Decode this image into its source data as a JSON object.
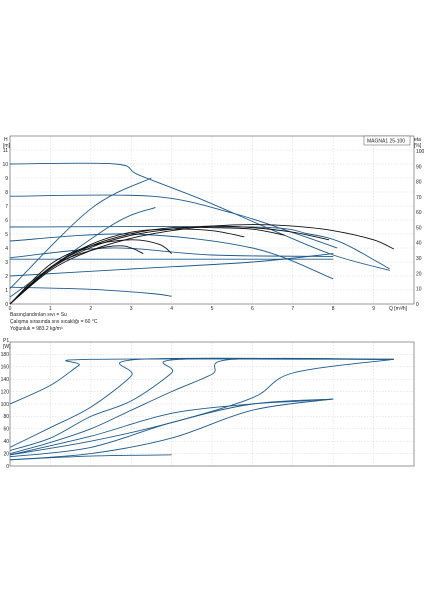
{
  "chart_data": [
    {
      "type": "line",
      "title": "MAGNA1 25-100",
      "ylabel_left": [
        "H",
        "[m]"
      ],
      "ylabel_right": [
        "eta",
        "[%]"
      ],
      "xlabel": "Q [m³/h]",
      "xlim": [
        0,
        10
      ],
      "xticks": [
        "0",
        "1",
        "2",
        "3",
        "4",
        "5",
        "6",
        "7",
        "8",
        "9"
      ],
      "ylim": [
        0,
        12
      ],
      "yticks": [
        "0",
        "1",
        "2",
        "3",
        "4",
        "5",
        "6",
        "7",
        "8",
        "9",
        "10",
        "11"
      ],
      "ylim_right": [
        0,
        110
      ],
      "yticks_right": [
        "0",
        "10",
        "20",
        "30",
        "40",
        "50",
        "60",
        "70",
        "80",
        "90",
        "100"
      ],
      "grid": true,
      "colors": {
        "head": "#1f5a8a",
        "efficiency": "#111111",
        "grid": "#c8c8c8"
      },
      "head_series": [
        {
          "x": [
            0,
            2.6,
            3.2,
            4.8,
            6.4,
            8.0,
            9.4
          ],
          "y": [
            10.0,
            10.0,
            9.2,
            7.4,
            5.4,
            3.5,
            2.4
          ]
        },
        {
          "x": [
            0,
            2.0,
            3.5
          ],
          "y": [
            1.1,
            6.8,
            9.0
          ]
        },
        {
          "x": [
            0,
            3.5,
            5.5,
            7.0,
            8.1
          ],
          "y": [
            7.7,
            7.7,
            6.5,
            5.1,
            4.0
          ]
        },
        {
          "x": [
            0,
            2.5,
            3.6
          ],
          "y": [
            0.5,
            5.6,
            6.9
          ]
        },
        {
          "x": [
            0,
            6.0,
            7.4,
            8.2,
            9.1,
            9.4
          ],
          "y": [
            5.5,
            5.5,
            5.0,
            4.4,
            3.0,
            2.5
          ]
        },
        {
          "x": [
            0,
            3.0,
            6.0,
            8.0
          ],
          "y": [
            4.5,
            5.0,
            4.0,
            1.8
          ]
        },
        {
          "x": [
            0,
            2.5,
            5.0,
            8.0
          ],
          "y": [
            3.3,
            4.0,
            3.5,
            3.4
          ]
        },
        {
          "x": [
            0,
            3.0,
            6.0,
            8.0
          ],
          "y": [
            2.0,
            2.5,
            3.0,
            3.6
          ]
        },
        {
          "x": [
            0,
            8.0
          ],
          "y": [
            3.2,
            3.2
          ]
        },
        {
          "x": [
            0,
            2.0,
            3.5,
            4.0
          ],
          "y": [
            1.2,
            1.05,
            0.75,
            0.55
          ]
        }
      ],
      "efficiency_series": [
        {
          "x": [
            0,
            1.0,
            2.0,
            3.0,
            4.0,
            5.0,
            6.0,
            7.0,
            8.0,
            9.0,
            9.5
          ],
          "y": [
            0,
            22,
            35,
            43,
            48,
            51,
            52,
            51,
            48,
            42,
            36
          ]
        },
        {
          "x": [
            0,
            1.0,
            2.0,
            3.0,
            4.0,
            5.0,
            6.0,
            7.0,
            7.9
          ],
          "y": [
            0,
            23,
            37,
            45,
            49,
            51,
            50,
            47,
            42
          ]
        },
        {
          "x": [
            0,
            1.0,
            2.0,
            3.0,
            4.0,
            5.0,
            6.0,
            6.8
          ],
          "y": [
            0,
            24,
            38,
            46,
            50,
            50,
            49,
            45
          ]
        },
        {
          "x": [
            0,
            1.0,
            2.0,
            3.0,
            4.0,
            5.0,
            5.8
          ],
          "y": [
            0,
            24,
            39,
            47,
            49,
            48,
            44
          ]
        },
        {
          "x": [
            0,
            1.0,
            2.0,
            3.0,
            3.7,
            4.0
          ],
          "y": [
            0,
            26,
            38,
            42,
            39,
            33
          ]
        },
        {
          "x": [
            0,
            1.0,
            2.0,
            2.8,
            3.3
          ],
          "y": [
            0,
            24,
            35,
            38,
            33
          ]
        }
      ]
    },
    {
      "type": "line",
      "ylabel": [
        "P1",
        "[W]"
      ],
      "xlim": [
        0,
        10
      ],
      "ylim": [
        0,
        200
      ],
      "yticks": [
        "0",
        "20",
        "40",
        "60",
        "80",
        "100",
        "120",
        "140",
        "160",
        "180"
      ],
      "grid": true,
      "colors": {
        "power": "#1f5a8a",
        "grid": "#c8c8c8"
      },
      "notes": [
        "Basınçlandırılan sıvı = Su",
        "Çalışma sırasında sıvı sıcaklığı = 60 °C",
        "Yoğunluk = 983.2 kg/m³"
      ],
      "power_series": [
        {
          "x": [
            0,
            1.0,
            1.7,
            2.0,
            9.5
          ],
          "y": [
            100,
            130,
            162,
            172,
            172
          ]
        },
        {
          "x": [
            0,
            1.0,
            2.0,
            3.0,
            3.2,
            9.5
          ],
          "y": [
            30,
            62,
            95,
            145,
            172,
            172
          ]
        },
        {
          "x": [
            0,
            1.0,
            2.0,
            3.0,
            4.0,
            4.2,
            9.5
          ],
          "y": [
            25,
            45,
            80,
            105,
            150,
            172,
            172
          ]
        },
        {
          "x": [
            0,
            1.0,
            2.0,
            3.0,
            4.0,
            5.0,
            5.5,
            9.5
          ],
          "y": [
            20,
            38,
            60,
            90,
            120,
            148,
            172,
            172
          ]
        },
        {
          "x": [
            0,
            2.0,
            4.0,
            6.0,
            7.0,
            9.5
          ],
          "y": [
            18,
            40,
            70,
            110,
            150,
            172
          ]
        },
        {
          "x": [
            0,
            2.0,
            4.0,
            6.0,
            7.0,
            8.0
          ],
          "y": [
            18,
            48,
            85,
            100,
            104,
            108
          ]
        },
        {
          "x": [
            0,
            2.0,
            4.0,
            6.0,
            8.0
          ],
          "y": [
            15,
            30,
            70,
            100,
            108
          ]
        },
        {
          "x": [
            0,
            2.0,
            4.0,
            6.0,
            8.0
          ],
          "y": [
            10,
            20,
            45,
            90,
            108
          ]
        },
        {
          "x": [
            0,
            2.0,
            4.0
          ],
          "y": [
            10,
            16,
            18
          ]
        }
      ]
    }
  ]
}
